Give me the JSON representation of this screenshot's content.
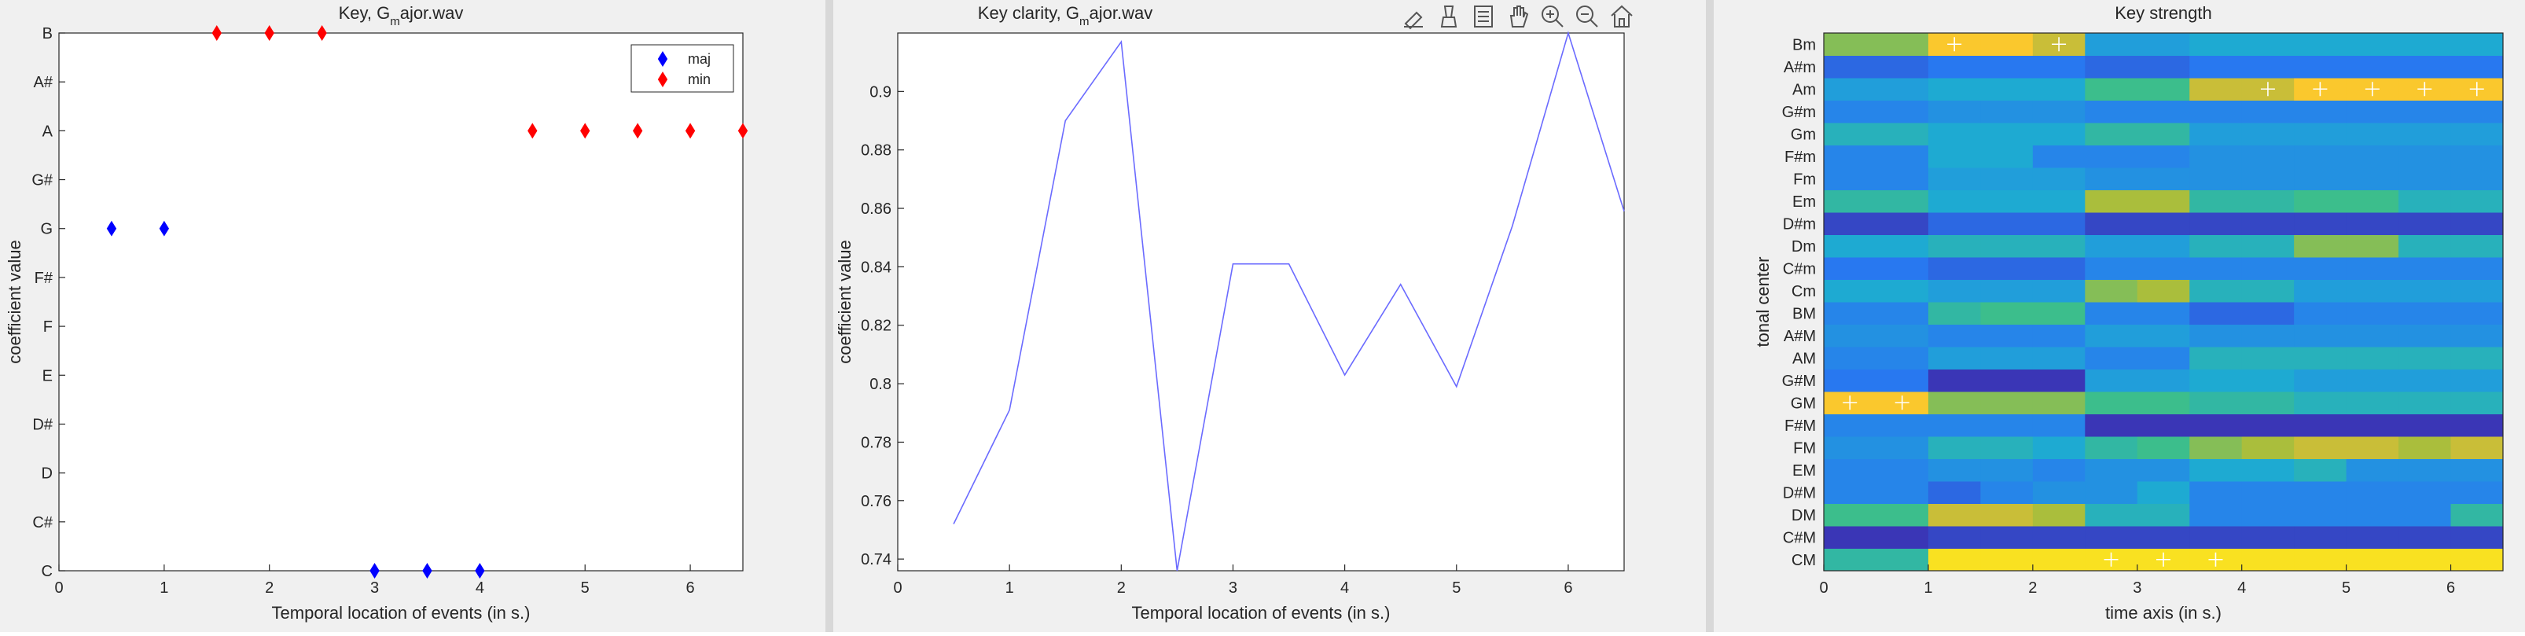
{
  "colors": {
    "maj": "#0000ff",
    "min": "#ff0000",
    "line": "#6b6bff",
    "axis": "#262626",
    "panel_bg": "#f0f0f0"
  },
  "toolbar": {
    "icons": [
      "data-tip-icon",
      "brush-icon",
      "legend-icon",
      "pan-icon",
      "zoom-in-icon",
      "zoom-out-icon",
      "home-icon"
    ]
  },
  "chart_data": [
    {
      "type": "scatter",
      "title": "Key, G",
      "title_subscript": "m",
      "title_rest": "ajor.wav",
      "xlabel": "Temporal location of events (in s.)",
      "ylabel": "coefficient value",
      "xlim": [
        0,
        6.5
      ],
      "xticks": [
        "0",
        "1",
        "2",
        "3",
        "4",
        "5",
        "6"
      ],
      "categories": [
        "C",
        "C#",
        "D",
        "D#",
        "E",
        "F",
        "F#",
        "G",
        "G#",
        "A",
        "A#",
        "B"
      ],
      "legend_position": "top-right",
      "series": [
        {
          "name": "maj",
          "points": [
            [
              0.5,
              "G"
            ],
            [
              1.0,
              "G"
            ],
            [
              3.0,
              "C"
            ],
            [
              3.5,
              "C"
            ],
            [
              4.0,
              "C"
            ]
          ]
        },
        {
          "name": "min",
          "points": [
            [
              1.5,
              "B"
            ],
            [
              2.0,
              "B"
            ],
            [
              2.5,
              "B"
            ],
            [
              4.5,
              "A"
            ],
            [
              5.0,
              "A"
            ],
            [
              5.5,
              "A"
            ],
            [
              6.0,
              "A"
            ],
            [
              6.5,
              "A"
            ]
          ]
        }
      ]
    },
    {
      "type": "line",
      "title": "Key clarity, G",
      "title_subscript": "m",
      "title_rest": "ajor.wav",
      "xlabel": "Temporal location of events (in s.)",
      "ylabel": "coefficient value",
      "xlim": [
        0,
        6.5
      ],
      "ylim": [
        0.736,
        0.92
      ],
      "xticks": [
        "0",
        "1",
        "2",
        "3",
        "4",
        "5",
        "6"
      ],
      "yticks": [
        "0.74",
        "0.76",
        "0.78",
        "0.8",
        "0.82",
        "0.84",
        "0.86",
        "0.88",
        "0.9"
      ],
      "x": [
        0.5,
        1.0,
        1.5,
        2.0,
        2.5,
        3.0,
        3.5,
        4.0,
        4.5,
        5.0,
        5.5,
        6.0,
        6.5
      ],
      "values": [
        0.752,
        0.791,
        0.89,
        0.917,
        0.736,
        0.841,
        0.841,
        0.803,
        0.834,
        0.799,
        0.854,
        0.92,
        0.859
      ]
    },
    {
      "type": "heatmap",
      "title": "Key strength",
      "xlabel": "time axis (in s.)",
      "ylabel": "tonal center",
      "xlim": [
        0,
        6.5
      ],
      "xticks": [
        "0",
        "1",
        "2",
        "3",
        "4",
        "5",
        "6"
      ],
      "rows": [
        "CM",
        "C#M",
        "DM",
        "D#M",
        "EM",
        "FM",
        "F#M",
        "GM",
        "G#M",
        "AM",
        "A#M",
        "BM",
        "Cm",
        "C#m",
        "Dm",
        "D#m",
        "Em",
        "Fm",
        "F#m",
        "Gm",
        "G#m",
        "Am",
        "A#m",
        "Bm"
      ],
      "values": [
        [
          0.55,
          0.55,
          0.95,
          0.95,
          0.95,
          0.95,
          0.95,
          0.95,
          0.95,
          0.95,
          0.95,
          0.95,
          0.95
        ],
        [
          0.05,
          0.05,
          0.1,
          0.1,
          0.1,
          0.1,
          0.1,
          0.1,
          0.1,
          0.1,
          0.1,
          0.1,
          0.1
        ],
        [
          0.6,
          0.6,
          0.8,
          0.8,
          0.75,
          0.5,
          0.5,
          0.3,
          0.3,
          0.3,
          0.3,
          0.3,
          0.55
        ],
        [
          0.3,
          0.3,
          0.2,
          0.3,
          0.35,
          0.35,
          0.45,
          0.3,
          0.3,
          0.3,
          0.3,
          0.3,
          0.3
        ],
        [
          0.3,
          0.3,
          0.35,
          0.35,
          0.3,
          0.35,
          0.35,
          0.45,
          0.45,
          0.5,
          0.35,
          0.35,
          0.35
        ],
        [
          0.35,
          0.35,
          0.5,
          0.5,
          0.45,
          0.55,
          0.6,
          0.7,
          0.75,
          0.8,
          0.8,
          0.75,
          0.8
        ],
        [
          0.3,
          0.3,
          0.3,
          0.3,
          0.3,
          0.05,
          0.05,
          0.05,
          0.05,
          0.05,
          0.05,
          0.05,
          0.05
        ],
        [
          0.9,
          0.9,
          0.7,
          0.7,
          0.7,
          0.6,
          0.6,
          0.55,
          0.55,
          0.5,
          0.5,
          0.5,
          0.5
        ],
        [
          0.25,
          0.25,
          0.05,
          0.05,
          0.05,
          0.4,
          0.4,
          0.45,
          0.45,
          0.4,
          0.4,
          0.4,
          0.4
        ],
        [
          0.3,
          0.3,
          0.4,
          0.4,
          0.4,
          0.3,
          0.3,
          0.5,
          0.5,
          0.5,
          0.5,
          0.5,
          0.5
        ],
        [
          0.35,
          0.35,
          0.3,
          0.3,
          0.3,
          0.4,
          0.4,
          0.35,
          0.35,
          0.35,
          0.35,
          0.35,
          0.35
        ],
        [
          0.3,
          0.3,
          0.55,
          0.6,
          0.6,
          0.3,
          0.3,
          0.2,
          0.2,
          0.3,
          0.3,
          0.3,
          0.3
        ],
        [
          0.45,
          0.45,
          0.4,
          0.4,
          0.4,
          0.7,
          0.75,
          0.5,
          0.5,
          0.4,
          0.4,
          0.4,
          0.4
        ],
        [
          0.25,
          0.25,
          0.2,
          0.2,
          0.2,
          0.3,
          0.3,
          0.3,
          0.3,
          0.3,
          0.3,
          0.3,
          0.3
        ],
        [
          0.45,
          0.45,
          0.5,
          0.5,
          0.5,
          0.4,
          0.4,
          0.5,
          0.5,
          0.7,
          0.7,
          0.5,
          0.5
        ],
        [
          0.1,
          0.1,
          0.2,
          0.2,
          0.2,
          0.1,
          0.1,
          0.1,
          0.1,
          0.1,
          0.1,
          0.1,
          0.1
        ],
        [
          0.55,
          0.55,
          0.45,
          0.45,
          0.45,
          0.75,
          0.75,
          0.55,
          0.55,
          0.6,
          0.6,
          0.5,
          0.5
        ],
        [
          0.3,
          0.3,
          0.4,
          0.4,
          0.4,
          0.35,
          0.35,
          0.35,
          0.35,
          0.35,
          0.35,
          0.35,
          0.35
        ],
        [
          0.3,
          0.3,
          0.45,
          0.45,
          0.3,
          0.3,
          0.3,
          0.35,
          0.35,
          0.35,
          0.35,
          0.35,
          0.35
        ],
        [
          0.5,
          0.5,
          0.45,
          0.45,
          0.45,
          0.55,
          0.55,
          0.4,
          0.4,
          0.4,
          0.4,
          0.4,
          0.4
        ],
        [
          0.3,
          0.3,
          0.35,
          0.35,
          0.35,
          0.3,
          0.3,
          0.3,
          0.3,
          0.3,
          0.3,
          0.3,
          0.3
        ],
        [
          0.4,
          0.4,
          0.45,
          0.45,
          0.45,
          0.6,
          0.6,
          0.8,
          0.8,
          0.9,
          0.9,
          0.9,
          0.9
        ],
        [
          0.2,
          0.2,
          0.25,
          0.25,
          0.25,
          0.2,
          0.2,
          0.25,
          0.25,
          0.25,
          0.25,
          0.25,
          0.25
        ],
        [
          0.7,
          0.7,
          0.9,
          0.9,
          0.8,
          0.4,
          0.4,
          0.45,
          0.45,
          0.45,
          0.45,
          0.45,
          0.45
        ]
      ],
      "markers": [
        [
          "Bm",
          1.25
        ],
        [
          "Bm",
          2.25
        ],
        [
          "Am",
          4.25
        ],
        [
          "Am",
          4.75
        ],
        [
          "Am",
          5.25
        ],
        [
          "Am",
          5.75
        ],
        [
          "Am",
          6.25
        ],
        [
          "GM",
          0.25
        ],
        [
          "GM",
          0.75
        ],
        [
          "CM",
          2.75
        ],
        [
          "CM",
          3.25
        ],
        [
          "CM",
          3.75
        ]
      ]
    }
  ]
}
